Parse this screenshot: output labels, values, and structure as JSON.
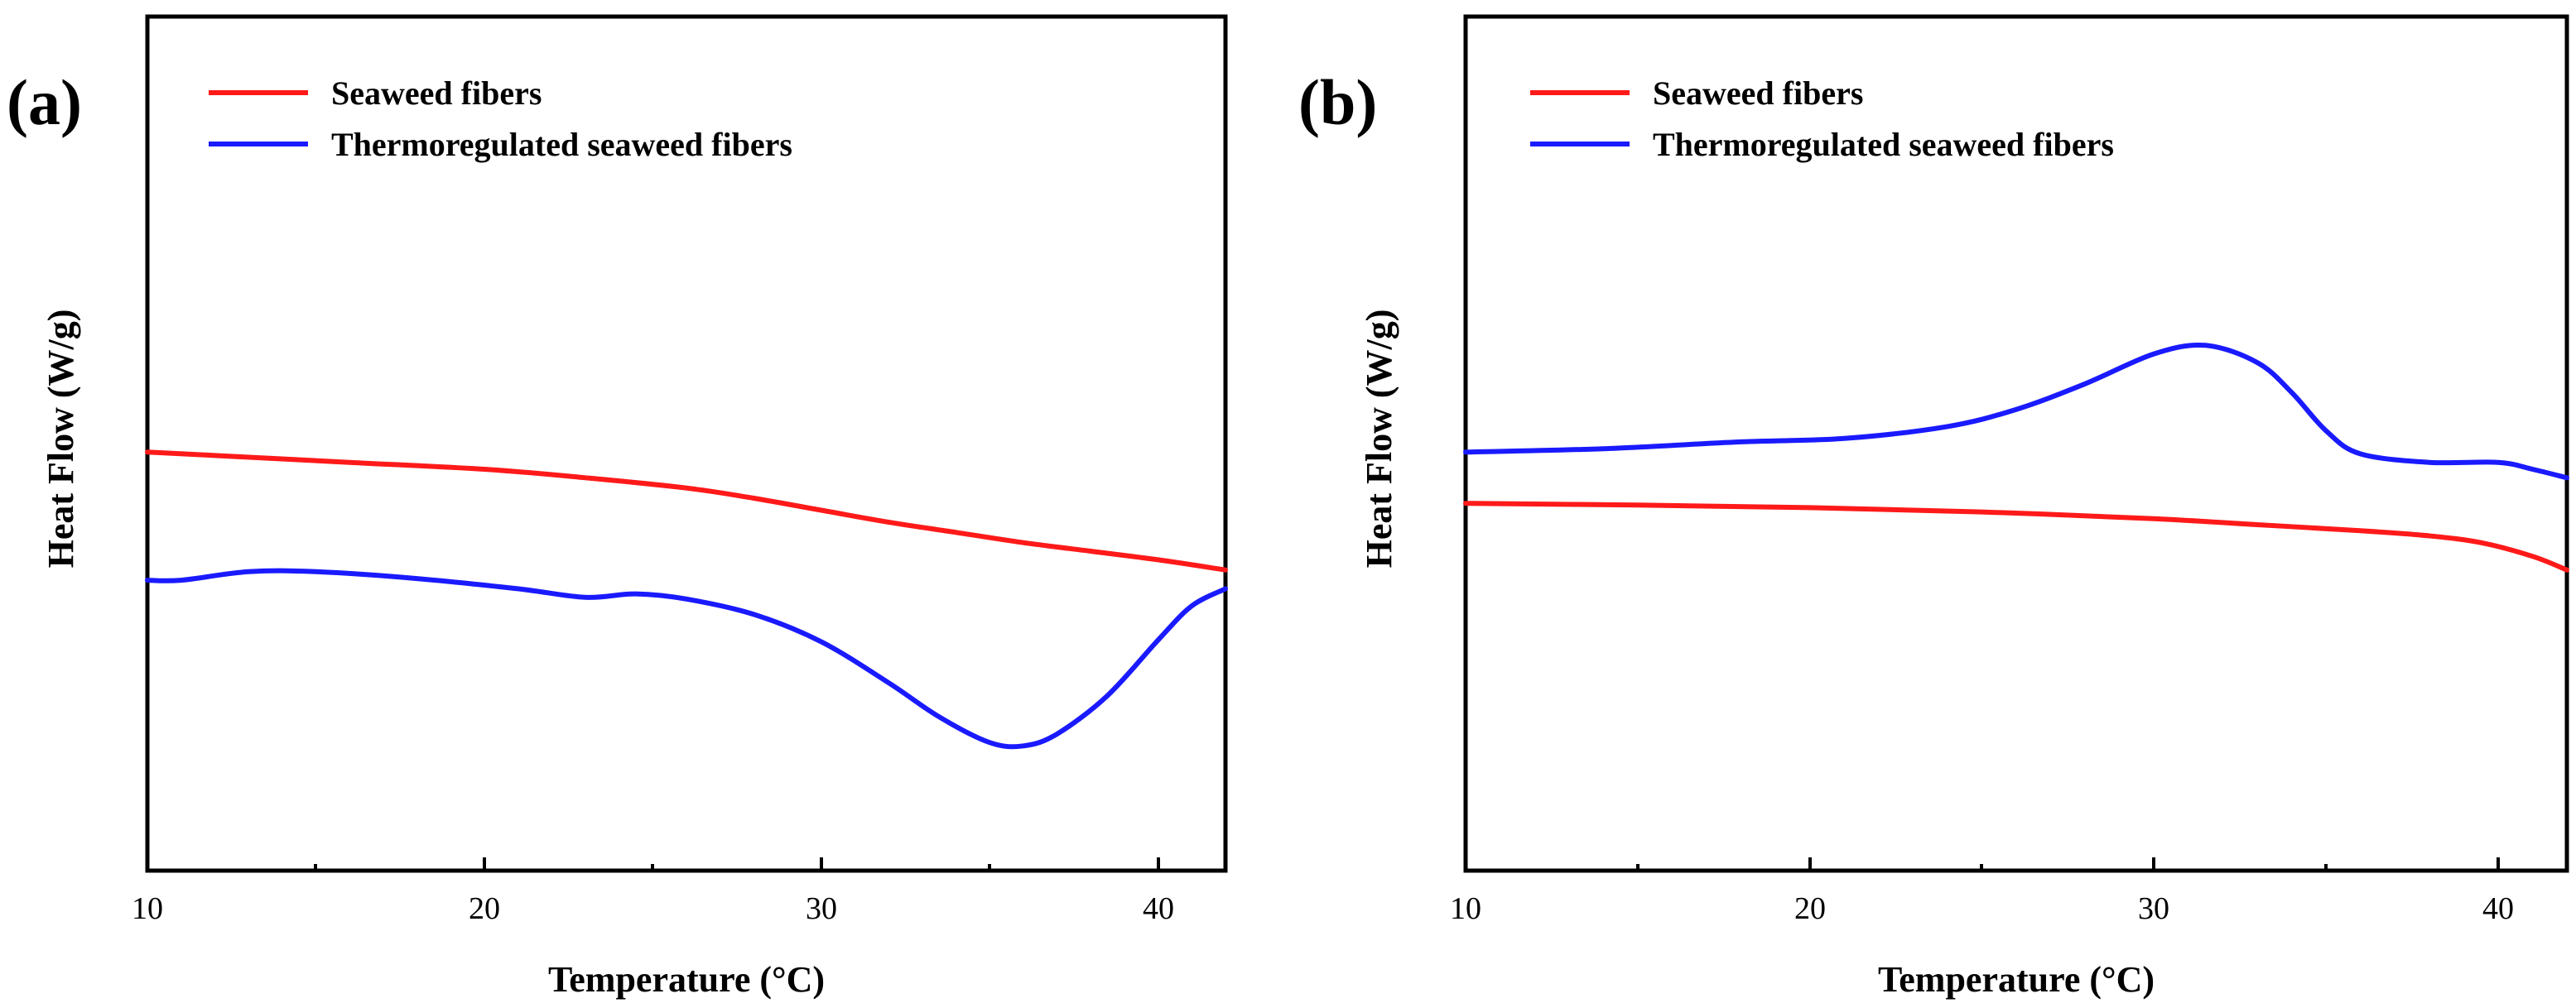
{
  "colors": {
    "red": "#ff1a1a",
    "blue": "#1a1aff"
  },
  "chart_data": [
    {
      "panel_label": "(a)",
      "type": "line",
      "title": "",
      "xlabel": "Temperature (°C)",
      "ylabel": "Heat Flow (W/g)",
      "xlim": [
        10,
        42
      ],
      "ylim": [
        0,
        100
      ],
      "x_ticks": [
        10,
        20,
        30,
        40
      ],
      "x_tick_labels": [
        "10",
        "20",
        "30",
        "40"
      ],
      "y_ticks_shown": false,
      "legend_position": "top-left",
      "series": [
        {
          "name": "Seaweed fibers",
          "color": "#ff1a1a",
          "x": [
            10,
            12,
            16,
            20,
            23,
            26,
            28,
            30,
            32,
            34,
            36,
            38,
            40,
            42
          ],
          "y": [
            49.0,
            48.6,
            47.8,
            47.0,
            46.0,
            44.8,
            43.6,
            42.2,
            40.8,
            39.6,
            38.4,
            37.4,
            36.4,
            35.2
          ]
        },
        {
          "name": "Thermoregulated seaweed fibers",
          "color": "#1a1aff",
          "x": [
            10,
            11,
            13,
            15,
            18,
            21,
            23,
            24.5,
            26,
            28,
            30,
            32,
            33.5,
            35,
            36,
            37,
            38.5,
            40,
            41,
            42
          ],
          "y": [
            34.0,
            34.0,
            35.0,
            35.0,
            34.2,
            33.0,
            32.0,
            32.4,
            31.8,
            30.0,
            26.8,
            22.0,
            18.0,
            15.0,
            14.6,
            16.0,
            20.5,
            27.0,
            31.0,
            33.0
          ]
        }
      ]
    },
    {
      "panel_label": "(b)",
      "type": "line",
      "title": "",
      "xlabel": "Temperature (°C)",
      "ylabel": "Heat Flow (W/g)",
      "xlim": [
        10,
        42
      ],
      "ylim": [
        0,
        100
      ],
      "x_ticks": [
        10,
        20,
        30,
        40
      ],
      "x_tick_labels": [
        "10",
        "20",
        "30",
        "40"
      ],
      "y_ticks_shown": false,
      "legend_position": "top-left",
      "series": [
        {
          "name": "Seaweed fibers",
          "color": "#ff1a1a",
          "x": [
            10,
            15,
            20,
            25,
            30,
            33,
            36,
            38,
            39.5,
            41,
            42
          ],
          "y": [
            43.0,
            42.8,
            42.5,
            42.0,
            41.2,
            40.5,
            39.8,
            39.2,
            38.4,
            36.8,
            35.2
          ]
        },
        {
          "name": "Thermoregulated seaweed fibers",
          "color": "#1a1aff",
          "x": [
            10,
            14,
            18,
            21,
            24,
            26,
            28,
            30,
            31.5,
            33,
            34,
            35,
            36,
            38,
            40,
            41,
            42
          ],
          "y": [
            49.0,
            49.4,
            50.2,
            50.6,
            52.0,
            54.0,
            57.0,
            60.5,
            61.5,
            59.5,
            56.0,
            51.5,
            48.8,
            47.8,
            47.8,
            47.0,
            46.0
          ]
        }
      ]
    }
  ]
}
